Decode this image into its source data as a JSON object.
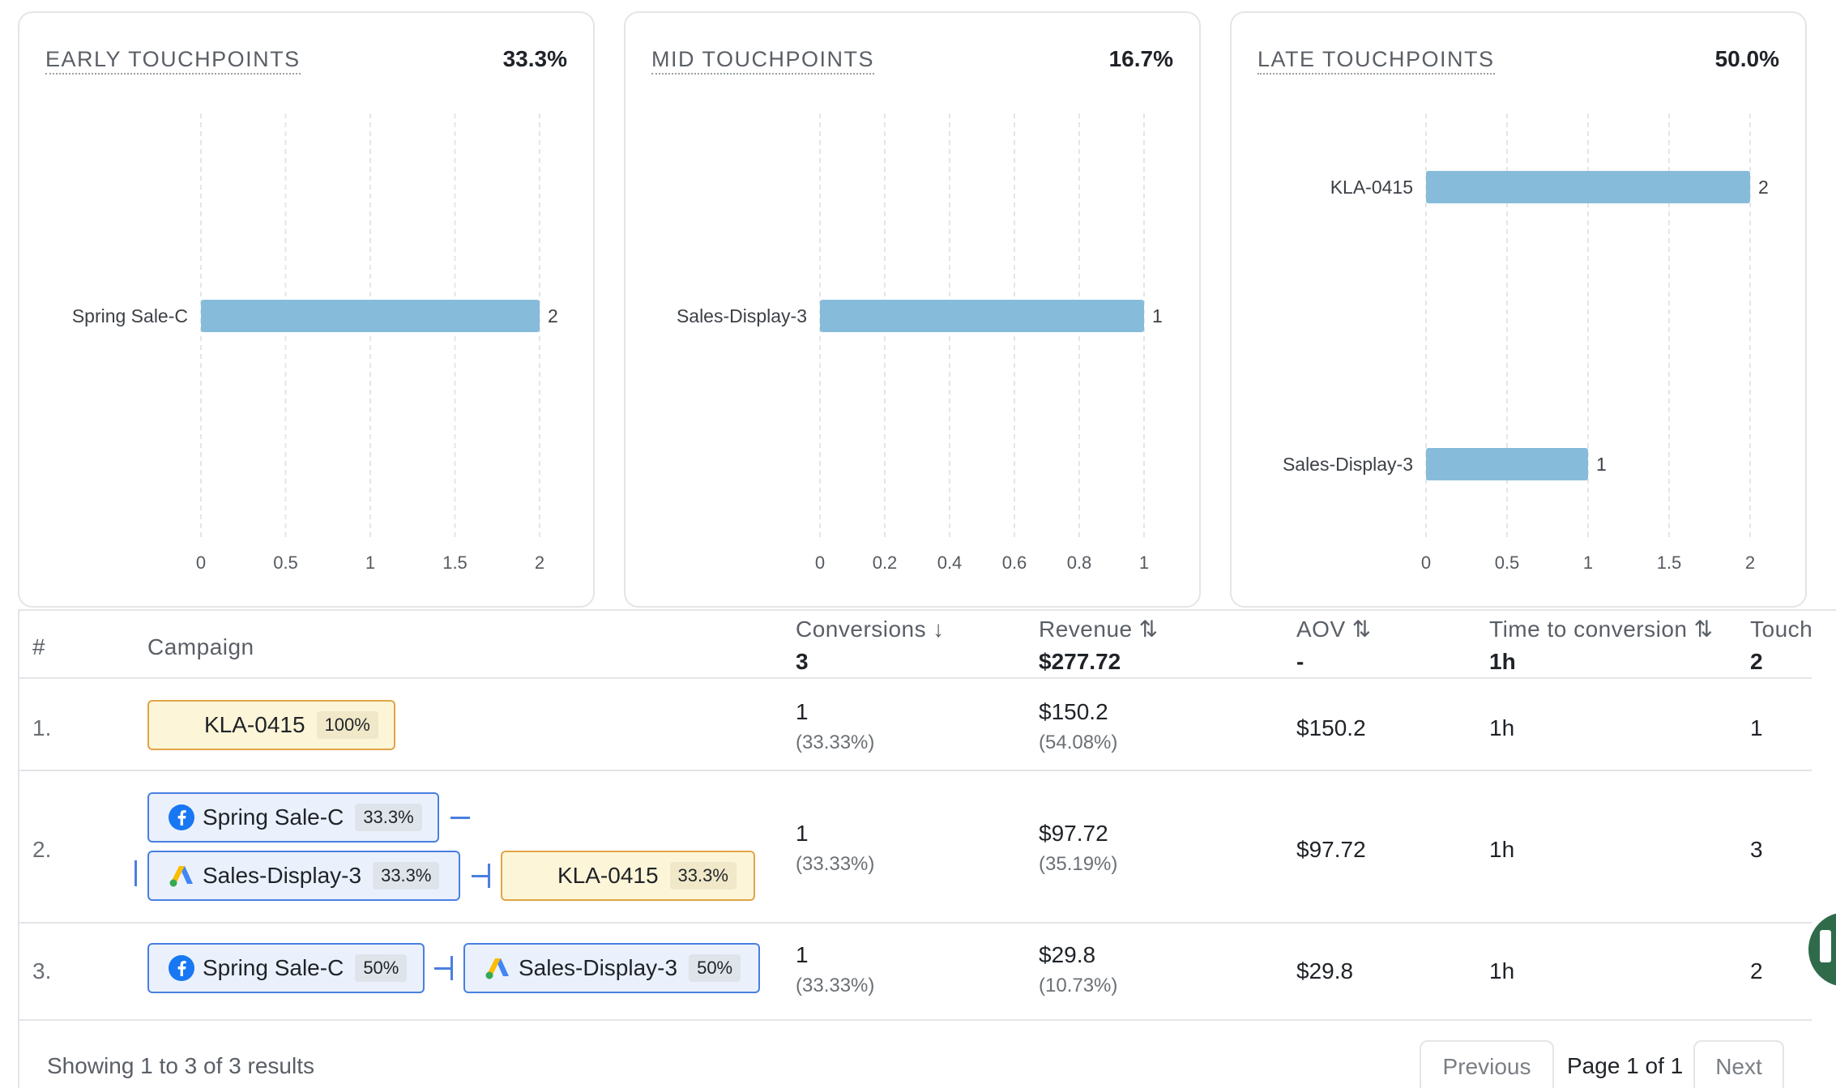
{
  "cards": [
    {
      "title": "EARLY TOUCHPOINTS",
      "percent": "33.3%",
      "chart_data": {
        "type": "bar",
        "orientation": "horizontal",
        "categories": [
          "Spring Sale-C"
        ],
        "values": [
          2
        ],
        "xlim": [
          0,
          2
        ],
        "xticks": [
          "0",
          "0.5",
          "1",
          "1.5",
          "2"
        ],
        "grid": true,
        "bar_color": "#86bcda"
      }
    },
    {
      "title": "MID TOUCHPOINTS",
      "percent": "16.7%",
      "chart_data": {
        "type": "bar",
        "orientation": "horizontal",
        "categories": [
          "Sales-Display-3"
        ],
        "values": [
          1
        ],
        "xlim": [
          0,
          1
        ],
        "xticks": [
          "0",
          "0.2",
          "0.4",
          "0.6",
          "0.8",
          "1"
        ],
        "grid": true,
        "bar_color": "#86bcda"
      }
    },
    {
      "title": "LATE TOUCHPOINTS",
      "percent": "50.0%",
      "chart_data": {
        "type": "bar",
        "orientation": "horizontal",
        "categories": [
          "KLA-0415",
          "Sales-Display-3"
        ],
        "values": [
          2,
          1
        ],
        "xlim": [
          0,
          2
        ],
        "xticks": [
          "0",
          "0.5",
          "1",
          "1.5",
          "2"
        ],
        "grid": true,
        "bar_color": "#86bcda"
      }
    }
  ],
  "table": {
    "headers": {
      "index": "#",
      "campaign": "Campaign",
      "conversions": "Conversions",
      "revenue": "Revenue",
      "aov": "AOV",
      "time": "Time to conversion",
      "touch": "Touch"
    },
    "sort_icons": {
      "conversions": "↓",
      "revenue": "⇅",
      "aov": "⇅",
      "time": "⇅"
    },
    "totals": {
      "conversions": "3",
      "revenue": "$277.72",
      "aov": "-",
      "time": "1h",
      "touch": "2"
    },
    "rows": [
      {
        "index": "1.",
        "chips": [
          {
            "label": "KLA-0415",
            "pct": "100%",
            "icon": "none"
          }
        ],
        "conversions": "1",
        "conversions_share": "(33.33%)",
        "revenue": "$150.2",
        "revenue_share": "(54.08%)",
        "aov": "$150.2",
        "time": "1h",
        "touch": "1"
      },
      {
        "index": "2.",
        "chips": [
          {
            "label": "Spring Sale-C",
            "pct": "33.3%",
            "icon": "facebook-icon"
          },
          {
            "label": "Sales-Display-3",
            "pct": "33.3%",
            "icon": "google-ads-icon"
          },
          {
            "label": "KLA-0415",
            "pct": "33.3%",
            "icon": "none"
          }
        ],
        "conversions": "1",
        "conversions_share": "(33.33%)",
        "revenue": "$97.72",
        "revenue_share": "(35.19%)",
        "aov": "$97.72",
        "time": "1h",
        "touch": "3"
      },
      {
        "index": "3.",
        "chips": [
          {
            "label": "Spring Sale-C",
            "pct": "50%",
            "icon": "facebook-icon"
          },
          {
            "label": "Sales-Display-3",
            "pct": "50%",
            "icon": "google-ads-icon"
          }
        ],
        "conversions": "1",
        "conversions_share": "(33.33%)",
        "revenue": "$29.8",
        "revenue_share": "(10.73%)",
        "aov": "$29.8",
        "time": "1h",
        "touch": "2"
      }
    ]
  },
  "footer": {
    "summary": "Showing 1 to 3 of 3 results",
    "previous": "Previous",
    "page": "Page 1 of 1",
    "next": "Next"
  },
  "colors": {
    "bar": "#86bcda",
    "chip_blue_border": "#4a7fe0",
    "chip_yellow_border": "#e0a545",
    "help_button": "#2f6b4a"
  }
}
